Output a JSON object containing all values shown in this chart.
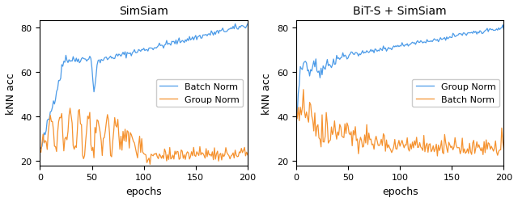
{
  "title_left": "SimSiam",
  "title_right": "BiT-S + SimSiam",
  "xlabel": "epochs",
  "ylabel": "kNN acc",
  "xlim": [
    0,
    200
  ],
  "ylim": [
    18,
    83
  ],
  "yticks": [
    20,
    40,
    60,
    80
  ],
  "xticks": [
    0,
    50,
    100,
    150,
    200
  ],
  "blue_color": "#4C9BE8",
  "orange_color": "#F5922F",
  "legend_left": [
    "Batch Norm",
    "Group Norm"
  ],
  "legend_right": [
    "Group Norm",
    "Batch Norm"
  ],
  "figsize": [
    6.4,
    2.51
  ],
  "dpi": 100
}
